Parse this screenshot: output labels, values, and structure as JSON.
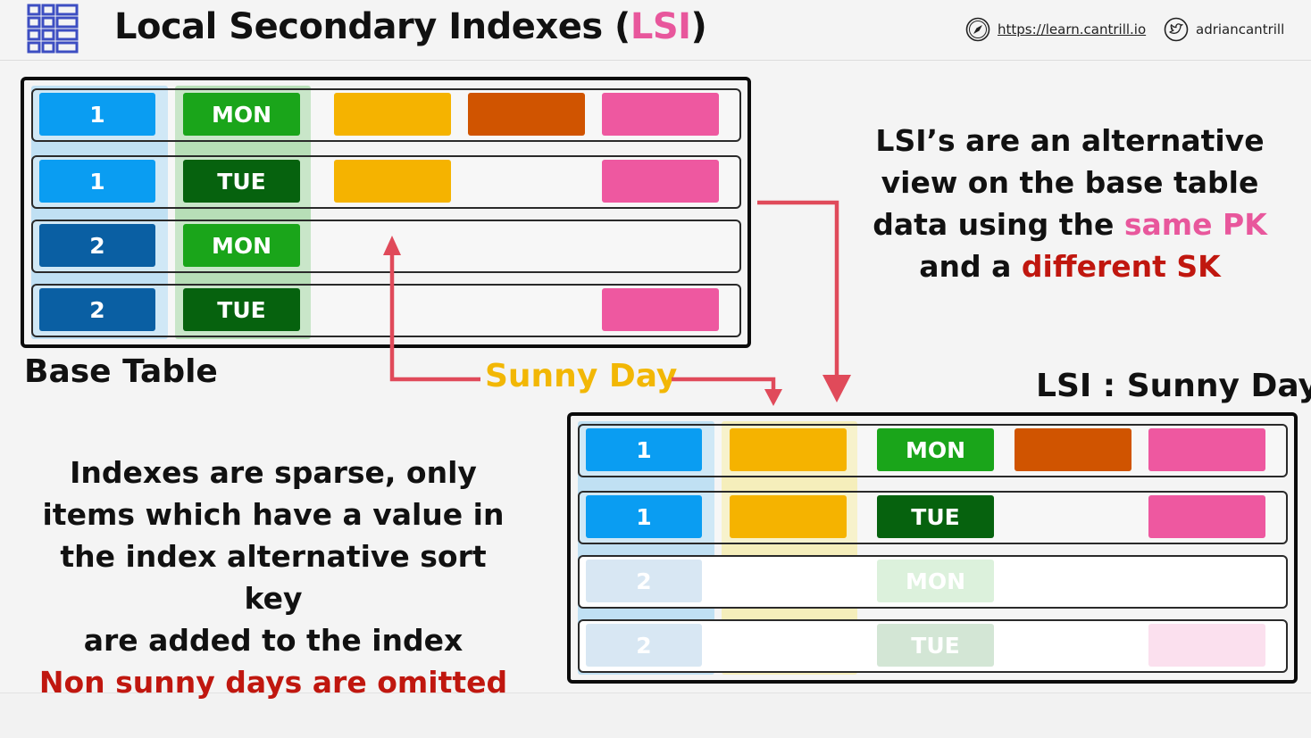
{
  "header": {
    "title_prefix": "Local Secondary Indexes (",
    "title_accent": "LSI",
    "title_suffix": ")",
    "website": "https://learn.cantrill.io",
    "handle": "adriancantrill"
  },
  "colors": {
    "pk_light": "#0a9df2",
    "pk_dark": "#0a5fa3",
    "sk_light": "#1aa51a",
    "sk_dark": "#06620e",
    "attr_yellow": "#f5b300",
    "attr_orange": "#d05400",
    "attr_pink": "#ee58a0",
    "arrow_red": "#e04a5a",
    "accent_pink": "#e8579c",
    "accent_red": "#c0170f",
    "sunny_yellow": "#f2b705"
  },
  "base_table": {
    "label": "Base Table",
    "rows": [
      {
        "pk": "1",
        "sk": "MON",
        "attrs": [
          "yellow",
          "orange",
          "pink"
        ]
      },
      {
        "pk": "1",
        "sk": "TUE",
        "attrs": [
          "yellow",
          "",
          "pink"
        ]
      },
      {
        "pk": "2",
        "sk": "MON",
        "attrs": [
          "",
          "",
          ""
        ]
      },
      {
        "pk": "2",
        "sk": "TUE",
        "attrs": [
          "",
          "",
          "pink"
        ]
      }
    ]
  },
  "lsi_table": {
    "label": "LSI : Sunny Day",
    "rows": [
      {
        "pk": "1",
        "sk": "MON",
        "included": true
      },
      {
        "pk": "1",
        "sk": "TUE",
        "included": true
      },
      {
        "pk": "2",
        "sk": "MON",
        "included": false
      },
      {
        "pk": "2",
        "sk": "TUE",
        "included": false
      }
    ]
  },
  "sunny_day_label": "Sunny Day",
  "explanation": {
    "line1": "LSI’s are an alternative",
    "line2": "view on the base table",
    "line3_prefix": "data using the ",
    "line3_accent": "same PK",
    "line4_prefix": "and a ",
    "line4_accent": "different SK"
  },
  "sparse_note": {
    "line1": "Indexes are sparse, only",
    "line2": "items which have a value in",
    "line3": "the index alternative sort key",
    "line4": "are added to the index",
    "line5": "Non sunny days are omitted"
  }
}
